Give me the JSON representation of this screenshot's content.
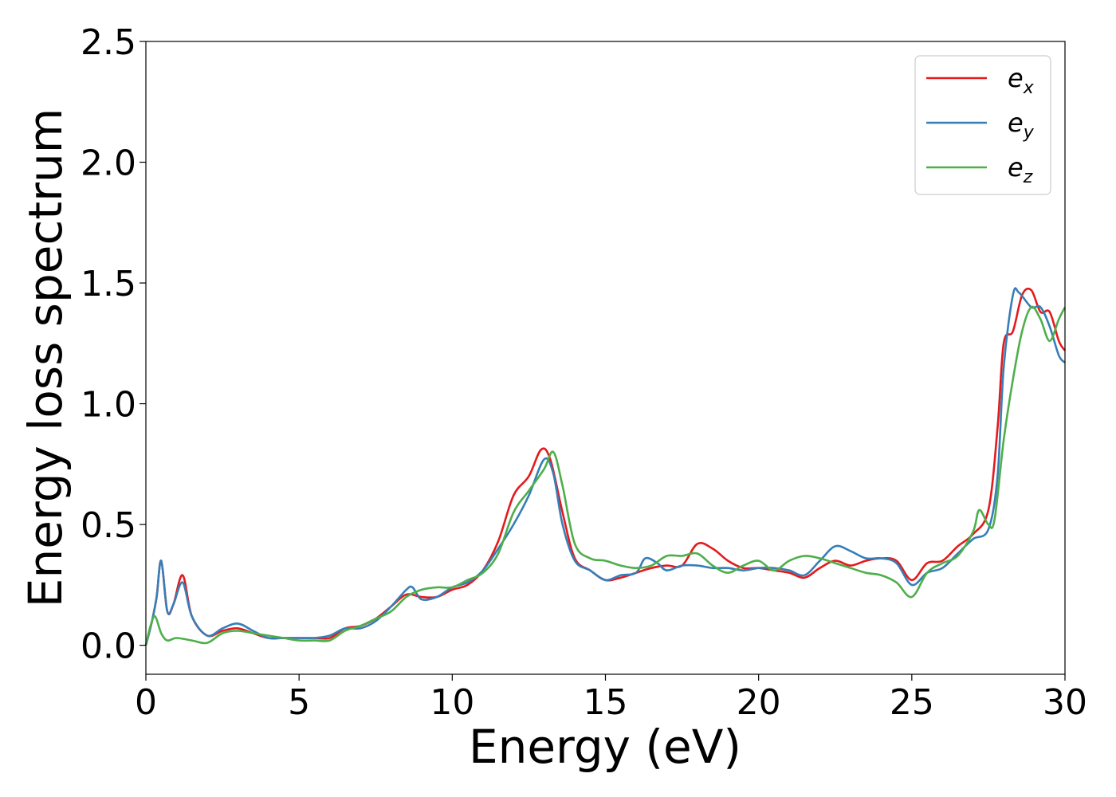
{
  "chart_data": {
    "type": "line",
    "xlabel": "Energy (eV)",
    "ylabel": "Energy loss spectrum",
    "xlim": [
      0,
      30
    ],
    "ylim": [
      -0.12,
      2.5
    ],
    "xticks": [
      "0",
      "5",
      "10",
      "15",
      "20",
      "25",
      "30"
    ],
    "xtick_values": [
      0,
      5,
      10,
      15,
      20,
      25,
      30
    ],
    "yticks": [
      "0.0",
      "0.5",
      "1.0",
      "1.5",
      "2.0",
      "2.5"
    ],
    "ytick_values": [
      0.0,
      0.5,
      1.0,
      1.5,
      2.0,
      2.5
    ],
    "grid": false,
    "legend_placement": "top-right",
    "series": [
      {
        "name": "e_x",
        "legend_base": "e",
        "legend_sub": "x",
        "color": "#e41a1c",
        "x": [
          0,
          0.2,
          0.35,
          0.5,
          0.7,
          0.9,
          1.2,
          1.5,
          2.0,
          2.5,
          3.0,
          3.5,
          4.0,
          4.5,
          5.0,
          5.5,
          6.0,
          6.5,
          7.0,
          7.5,
          8.0,
          8.5,
          9.0,
          9.5,
          10.0,
          10.5,
          11.0,
          11.5,
          12.0,
          12.5,
          12.9,
          13.2,
          13.6,
          14.0,
          14.5,
          15.0,
          15.5,
          16.0,
          16.5,
          17.0,
          17.5,
          18.0,
          18.5,
          19.0,
          19.5,
          20.0,
          20.5,
          21.0,
          21.5,
          22.0,
          22.5,
          23.0,
          23.5,
          24.0,
          24.5,
          25.0,
          25.5,
          26.0,
          26.5,
          27.0,
          27.5,
          27.8,
          28.0,
          28.3,
          28.6,
          28.9,
          29.2,
          29.5,
          29.8,
          30.0
        ],
        "y": [
          0.0,
          0.1,
          0.2,
          0.35,
          0.14,
          0.17,
          0.29,
          0.12,
          0.04,
          0.06,
          0.07,
          0.05,
          0.03,
          0.03,
          0.03,
          0.03,
          0.03,
          0.07,
          0.08,
          0.11,
          0.16,
          0.21,
          0.2,
          0.2,
          0.23,
          0.25,
          0.31,
          0.43,
          0.62,
          0.7,
          0.81,
          0.77,
          0.55,
          0.36,
          0.31,
          0.27,
          0.28,
          0.3,
          0.32,
          0.33,
          0.33,
          0.42,
          0.4,
          0.35,
          0.32,
          0.32,
          0.31,
          0.3,
          0.28,
          0.32,
          0.35,
          0.33,
          0.35,
          0.36,
          0.35,
          0.27,
          0.34,
          0.35,
          0.41,
          0.46,
          0.56,
          0.9,
          1.25,
          1.3,
          1.45,
          1.47,
          1.38,
          1.38,
          1.26,
          1.22
        ]
      },
      {
        "name": "e_y",
        "legend_base": "e",
        "legend_sub": "y",
        "color": "#377eb8",
        "x": [
          0,
          0.2,
          0.35,
          0.5,
          0.7,
          0.9,
          1.2,
          1.5,
          2.0,
          2.5,
          3.0,
          3.5,
          4.0,
          4.5,
          5.0,
          5.5,
          6.0,
          6.5,
          7.0,
          7.5,
          8.0,
          8.5,
          8.7,
          9.0,
          9.5,
          10.0,
          10.5,
          11.0,
          11.5,
          12.0,
          12.5,
          13.0,
          13.3,
          13.6,
          14.0,
          14.5,
          15.0,
          15.5,
          16.0,
          16.3,
          16.7,
          17.0,
          17.5,
          18.0,
          18.5,
          19.0,
          19.5,
          20.0,
          20.5,
          21.0,
          21.5,
          22.0,
          22.5,
          23.0,
          23.5,
          24.0,
          24.5,
          25.0,
          25.5,
          26.0,
          26.5,
          27.0,
          27.5,
          27.8,
          28.0,
          28.3,
          28.5,
          28.9,
          29.2,
          29.5,
          29.8,
          30.0
        ],
        "y": [
          0.0,
          0.1,
          0.2,
          0.35,
          0.14,
          0.17,
          0.26,
          0.12,
          0.04,
          0.07,
          0.09,
          0.06,
          0.03,
          0.03,
          0.03,
          0.03,
          0.04,
          0.07,
          0.07,
          0.1,
          0.16,
          0.23,
          0.24,
          0.19,
          0.2,
          0.24,
          0.26,
          0.31,
          0.4,
          0.5,
          0.62,
          0.77,
          0.71,
          0.5,
          0.35,
          0.31,
          0.27,
          0.29,
          0.3,
          0.36,
          0.34,
          0.31,
          0.33,
          0.33,
          0.32,
          0.32,
          0.31,
          0.32,
          0.32,
          0.31,
          0.29,
          0.35,
          0.41,
          0.39,
          0.36,
          0.36,
          0.34,
          0.25,
          0.3,
          0.32,
          0.38,
          0.44,
          0.48,
          0.7,
          1.15,
          1.45,
          1.46,
          1.4,
          1.4,
          1.32,
          1.2,
          1.17
        ]
      },
      {
        "name": "e_z",
        "legend_base": "e",
        "legend_sub": "z",
        "color": "#4daf4a",
        "x": [
          0,
          0.15,
          0.3,
          0.5,
          0.7,
          1.0,
          1.5,
          2.0,
          2.5,
          3.0,
          3.5,
          4.0,
          4.5,
          5.0,
          5.5,
          6.0,
          6.5,
          7.0,
          7.5,
          8.0,
          8.5,
          9.0,
          9.5,
          10.0,
          10.5,
          11.0,
          11.5,
          12.0,
          12.5,
          13.0,
          13.3,
          13.6,
          14.0,
          14.5,
          15.0,
          15.5,
          16.0,
          16.5,
          17.0,
          17.5,
          18.0,
          18.5,
          19.0,
          19.5,
          20.0,
          20.5,
          21.0,
          21.5,
          22.0,
          22.5,
          23.0,
          23.5,
          24.0,
          24.5,
          25.0,
          25.5,
          26.0,
          26.5,
          27.0,
          27.2,
          27.5,
          27.7,
          28.0,
          28.3,
          28.6,
          28.9,
          29.2,
          29.5,
          29.8,
          30.0
        ],
        "y": [
          0.0,
          0.08,
          0.12,
          0.05,
          0.02,
          0.03,
          0.02,
          0.01,
          0.05,
          0.06,
          0.05,
          0.04,
          0.03,
          0.02,
          0.02,
          0.02,
          0.06,
          0.08,
          0.11,
          0.14,
          0.2,
          0.23,
          0.24,
          0.24,
          0.27,
          0.3,
          0.38,
          0.55,
          0.64,
          0.73,
          0.8,
          0.66,
          0.42,
          0.36,
          0.35,
          0.33,
          0.32,
          0.33,
          0.37,
          0.37,
          0.38,
          0.33,
          0.3,
          0.33,
          0.35,
          0.31,
          0.35,
          0.37,
          0.36,
          0.34,
          0.32,
          0.3,
          0.29,
          0.26,
          0.2,
          0.3,
          0.34,
          0.37,
          0.47,
          0.56,
          0.5,
          0.52,
          0.85,
          1.1,
          1.3,
          1.4,
          1.35,
          1.26,
          1.35,
          1.4
        ]
      }
    ]
  }
}
